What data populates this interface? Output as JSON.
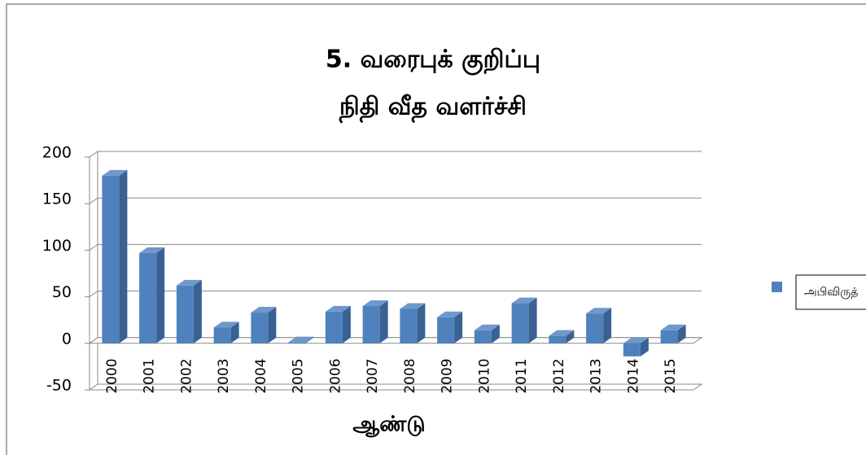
{
  "chart_data": {
    "type": "bar",
    "title": [
      "5. வரைபுக் குறிப்பு",
      "நிதி வீத வளர்ச்சி"
    ],
    "x_label": "ஆண்டு",
    "categories": [
      "2000",
      "2001",
      "2002",
      "2003",
      "2004",
      "2005",
      "2006",
      "2007",
      "2008",
      "2009",
      "2010",
      "2011",
      "2012",
      "2013",
      "2014",
      "2015"
    ],
    "series": [
      {
        "name": "அபிவிருத்",
        "color": "#4f81bd",
        "values": [
          180,
          97,
          62,
          17,
          33,
          1,
          34,
          40,
          37,
          28,
          14,
          43,
          8,
          32,
          -14,
          14
        ]
      }
    ],
    "ylim": [
      -50,
      200
    ],
    "yticks": [
      -50,
      0,
      50,
      100,
      150,
      200
    ],
    "grid": true,
    "legend": "right"
  }
}
